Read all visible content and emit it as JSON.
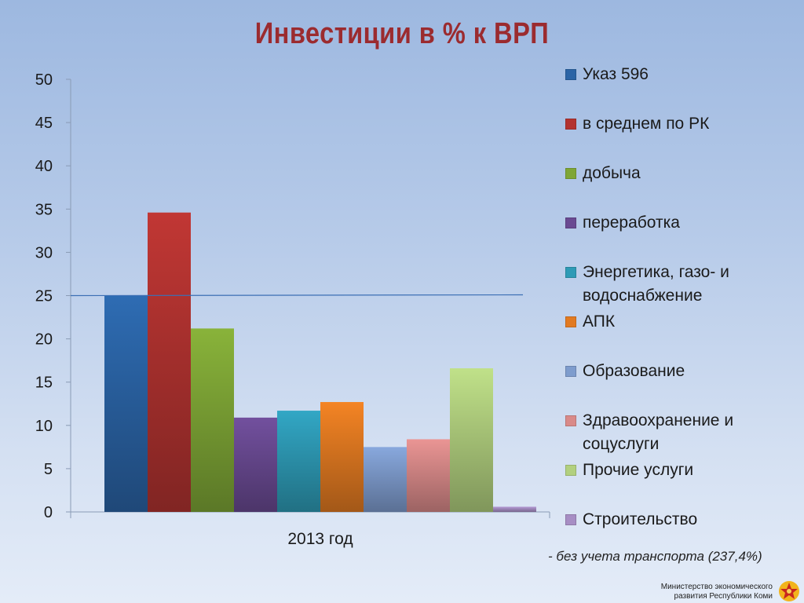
{
  "title": "Инвестиции в % к ВРП",
  "colors": {
    "title": "#9b2b2f",
    "series": [
      "#2b64a6",
      "#b33330",
      "#7fa636",
      "#6a4a92",
      "#2e9bb6",
      "#e27a21",
      "#7e9ccd",
      "#d98a89",
      "#b2d07f",
      "#a78ec4"
    ]
  },
  "chart_data": {
    "type": "bar",
    "categories": [
      "2013 год"
    ],
    "ylim": [
      0,
      50
    ],
    "yticks": [
      0,
      5,
      10,
      15,
      20,
      25,
      30,
      35,
      40,
      45,
      50
    ],
    "reference_line": 25,
    "grid": false,
    "legend_position": "right",
    "series": [
      {
        "name": "Указ 596",
        "values": [
          25
        ]
      },
      {
        "name": "в среднем по РК",
        "values": [
          34.6
        ]
      },
      {
        "name": "добыча",
        "values": [
          21.2
        ]
      },
      {
        "name": "переработка",
        "values": [
          10.9
        ]
      },
      {
        "name": "Энергетика, газо- и водоснабжение",
        "values": [
          11.7
        ]
      },
      {
        "name": "АПК",
        "values": [
          12.7
        ]
      },
      {
        "name": "Образование",
        "values": [
          7.5
        ]
      },
      {
        "name": "Здравоохранение и соцуслуги",
        "values": [
          8.4
        ]
      },
      {
        "name": "Прочие услуги",
        "values": [
          16.6
        ]
      },
      {
        "name": "Строительство",
        "values": [
          0.6
        ]
      }
    ]
  },
  "legend_lines": [
    [
      "Указ 596"
    ],
    [
      "в среднем по РК"
    ],
    [
      "добыча"
    ],
    [
      "переработка"
    ],
    [
      "Энергетика, газо- и",
      "водоснабжение"
    ],
    [
      "АПК"
    ],
    [
      "Образование"
    ],
    [
      "Здравоохранение и",
      "соцуслуги"
    ],
    [
      "Прочие услуги"
    ],
    [
      "Строительство"
    ]
  ],
  "footnote": "- без учета транспорта (237,4%)",
  "ministry": {
    "line1": "Министерство экономического",
    "line2": "развития Республики Коми"
  }
}
